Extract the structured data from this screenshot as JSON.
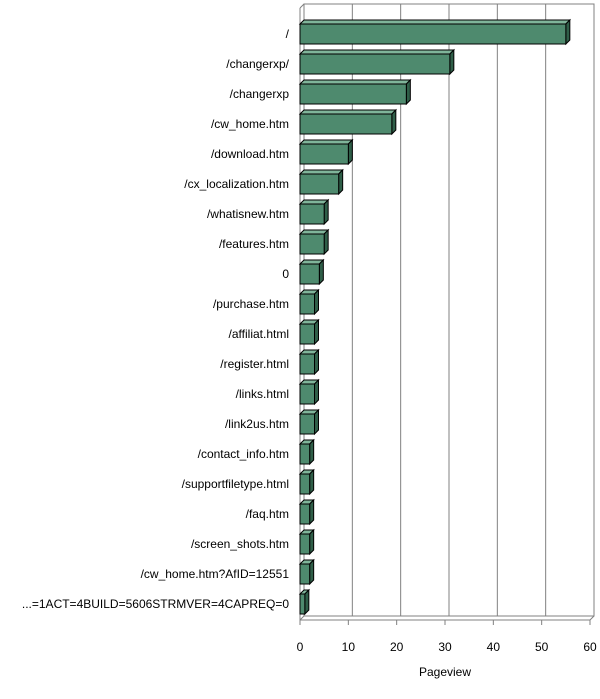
{
  "chart_data": {
    "type": "bar",
    "orientation": "horizontal",
    "title": "",
    "xlabel": "Pageview",
    "ylabel": "",
    "xlim": [
      0,
      60
    ],
    "x_ticks": [
      0,
      10,
      20,
      30,
      40,
      50,
      60
    ],
    "grid": true,
    "legend": "none",
    "bar_color": "#4e8a6e",
    "bar_top_color": "#7fb59a",
    "bar_side_color": "#2f5e48",
    "categories": [
      "/",
      "/changerxp/",
      "/changerxp",
      "/cw_home.htm",
      "/download.htm",
      "/cx_localization.htm",
      "/whatisnew.htm",
      "/features.htm",
      "0",
      "/purchase.htm",
      "/affiliat.html",
      "/register.html",
      "/links.html",
      "/link2us.htm",
      "/contact_info.htm",
      "/supportfiletype.html",
      "/faq.htm",
      "/screen_shots.htm",
      "/cw_home.htm?AfID=12551",
      "...=1ACT=4BUILD=5606STRMVER=4CAPREQ=0"
    ],
    "values": [
      55,
      31,
      22,
      19,
      10,
      8,
      5,
      5,
      4,
      3,
      3,
      3,
      3,
      3,
      2,
      2,
      2,
      2,
      2,
      1
    ]
  }
}
